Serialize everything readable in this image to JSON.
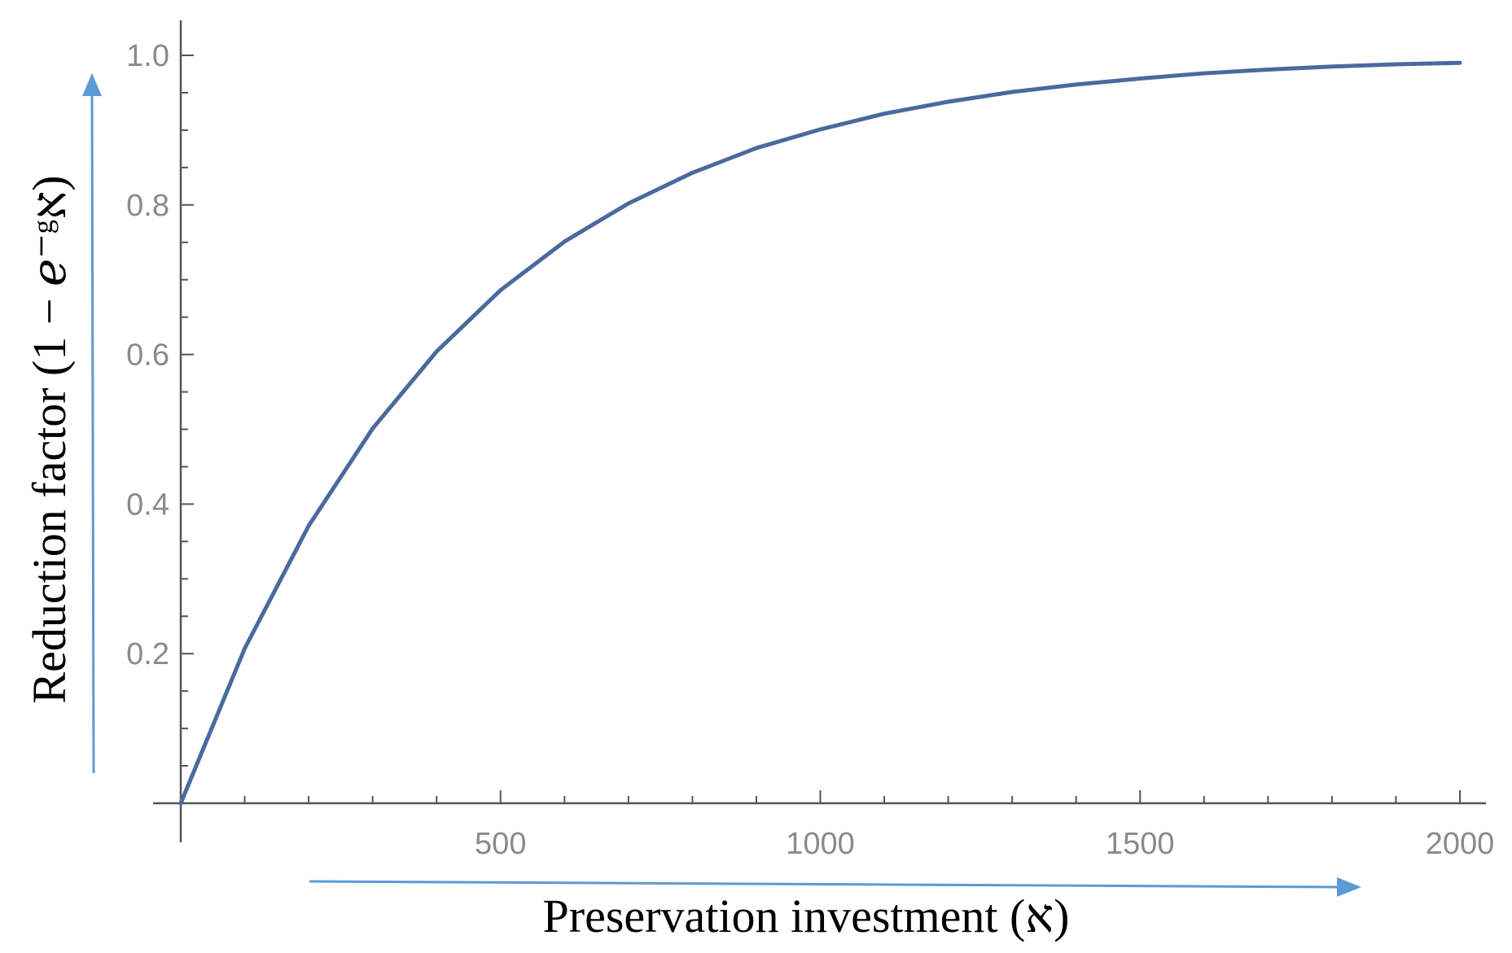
{
  "chart_data": {
    "type": "line",
    "title": "",
    "xlabel": "Preservation investment (א)",
    "ylabel": "Reduction factor (1 − ℯ⁻ᵍא)",
    "xlim": [
      0,
      2000
    ],
    "ylim": [
      0,
      1.0
    ],
    "x_ticks": [
      500,
      1000,
      1500,
      2000
    ],
    "x_tick_labels": [
      "500",
      "1000",
      "1500",
      "2000"
    ],
    "y_ticks": [
      0.2,
      0.4,
      0.6,
      0.8,
      1.0
    ],
    "y_tick_labels": [
      "0.2",
      "0.4",
      "0.6",
      "0.8",
      "1.0"
    ],
    "grid": false,
    "series": [
      {
        "color": "#4a6a9e",
        "x": [
          0,
          100,
          200,
          300,
          400,
          500,
          600,
          700,
          800,
          900,
          1000,
          1100,
          1200,
          1300,
          1400,
          1500,
          1600,
          1700,
          1800,
          1900,
          2000
        ],
        "y": [
          0,
          0.207,
          0.371,
          0.501,
          0.604,
          0.686,
          0.751,
          0.802,
          0.843,
          0.876,
          0.901,
          0.922,
          0.938,
          0.951,
          0.961,
          0.969,
          0.976,
          0.981,
          0.985,
          0.988,
          0.99
        ]
      }
    ],
    "annotations": {
      "x_arrow_color": "#5b9bd5",
      "y_arrow_color": "#5b9bd5"
    }
  }
}
